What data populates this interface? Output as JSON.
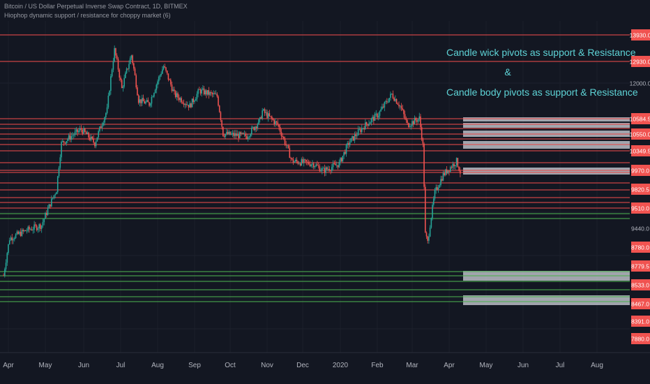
{
  "header": {
    "symbol": "Bitcoin / US Dollar Perpetual Inverse Swap Contract, 1D, BITMEX",
    "indicator": "Hiophop dynamic support / resistance for choppy market (6)"
  },
  "annotations": {
    "line1": "Candle wick pivots as support & Resistance",
    "line2": "&",
    "line3": "Candle body pivots as support & Resistance"
  },
  "colors": {
    "background": "#131722",
    "resistance": "#e84a4a",
    "support": "#4caf50",
    "up_candle": "#26a69a",
    "down_candle": "#ef5350",
    "zone": "#d1d4dc",
    "annotation": "#5ed3d6",
    "price_label_bg": "#f05350"
  },
  "chart_data": {
    "type": "candlestick",
    "title": "Bitcoin / US Dollar Perpetual Inverse Swap Contract, 1D, BITMEX",
    "x_tick_labels": [
      "Apr",
      "May",
      "Jun",
      "Jul",
      "Aug",
      "Sep",
      "Oct",
      "Nov",
      "Dec",
      "2020",
      "Feb",
      "Mar",
      "Apr",
      "May",
      "Jun",
      "Jul",
      "Aug"
    ],
    "y_axis_labels": [
      "13930.0",
      "12930.0",
      "12000.0",
      "10584.5",
      "10550.0",
      "10349.5",
      "9970.0",
      "9820.5",
      "9510.0",
      "9440.0",
      "8780.0",
      "8779.5",
      "8533.0",
      "8467.0",
      "8391.0",
      "7880.0"
    ],
    "resistance_levels": [
      13930.0,
      12930.0,
      10584.5,
      10550.0,
      10349.5,
      9970.0,
      9820.5,
      9510.0
    ],
    "support_levels": [
      9440.0,
      8779.5,
      8533.0,
      8467.0
    ],
    "close_path": [
      [
        "2019-03-28",
        4050
      ],
      [
        "2019-04-02",
        4900
      ],
      [
        "2019-04-15",
        5100
      ],
      [
        "2019-04-28",
        5250
      ],
      [
        "2019-05-10",
        6300
      ],
      [
        "2019-05-14",
        8000
      ],
      [
        "2019-05-30",
        8600
      ],
      [
        "2019-06-10",
        8000
      ],
      [
        "2019-06-20",
        9500
      ],
      [
        "2019-06-26",
        12930
      ],
      [
        "2019-07-02",
        10600
      ],
      [
        "2019-07-10",
        12600
      ],
      [
        "2019-07-16",
        10000
      ],
      [
        "2019-07-25",
        9800
      ],
      [
        "2019-08-06",
        11900
      ],
      [
        "2019-08-15",
        10300
      ],
      [
        "2019-08-28",
        9700
      ],
      [
        "2019-09-05",
        10500
      ],
      [
        "2019-09-20",
        10200
      ],
      [
        "2019-09-25",
        8400
      ],
      [
        "2019-10-15",
        8300
      ],
      [
        "2019-10-26",
        9000
      ],
      [
        "2019-10-28",
        9450
      ],
      [
        "2019-11-10",
        8800
      ],
      [
        "2019-11-22",
        7300
      ],
      [
        "2019-12-10",
        7200
      ],
      [
        "2019-12-18",
        6950
      ],
      [
        "2019-12-31",
        7200
      ],
      [
        "2020-01-08",
        8000
      ],
      [
        "2020-01-20",
        8700
      ],
      [
        "2020-02-02",
        9300
      ],
      [
        "2020-02-13",
        10300
      ],
      [
        "2020-02-20",
        9700
      ],
      [
        "2020-02-26",
        8800
      ],
      [
        "2020-03-07",
        9100
      ],
      [
        "2020-03-10",
        7900
      ],
      [
        "2020-03-12",
        5000
      ],
      [
        "2020-03-14",
        4800
      ],
      [
        "2020-03-20",
        6200
      ],
      [
        "2020-03-27",
        6800
      ],
      [
        "2020-04-07",
        7300
      ],
      [
        "2020-04-10",
        6900
      ]
    ]
  }
}
